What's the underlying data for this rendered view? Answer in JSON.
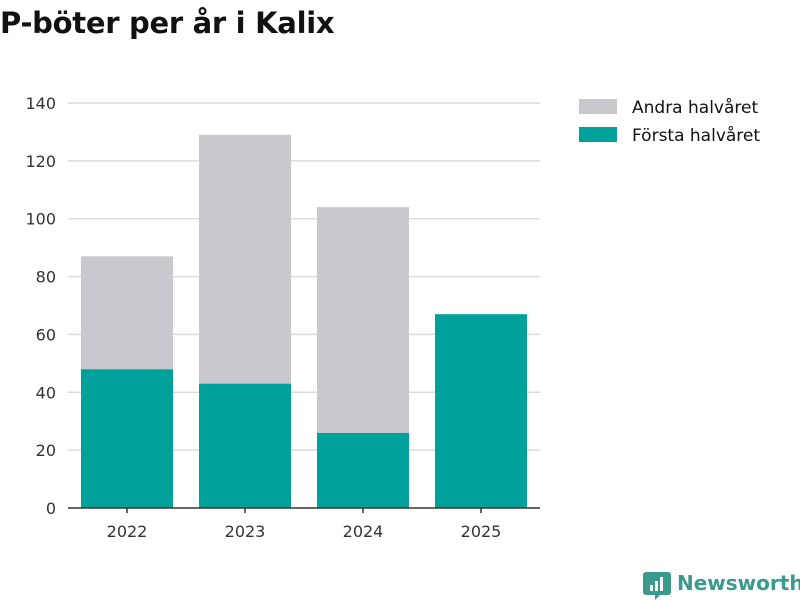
{
  "chart_data": {
    "type": "bar",
    "stacked": true,
    "title": "P-böter per år i Kalix",
    "xlabel": "",
    "ylabel": "",
    "categories": [
      "2022",
      "2023",
      "2024",
      "2025"
    ],
    "ylim": [
      0,
      140
    ],
    "yticks": [
      0,
      20,
      40,
      60,
      80,
      100,
      120,
      140
    ],
    "grid": true,
    "legend_position": "top-right",
    "series": [
      {
        "name": "Första halvåret",
        "color": "#00a19a",
        "values": [
          48,
          43,
          26,
          67
        ]
      },
      {
        "name": "Andra halvåret",
        "color": "#c8c8ce",
        "values": [
          39,
          86,
          78,
          null
        ]
      }
    ]
  },
  "legend": {
    "items": [
      {
        "label": "Andra halvåret",
        "color": "#c8c8ce"
      },
      {
        "label": "Första halvåret",
        "color": "#00a19a"
      }
    ]
  },
  "brand": {
    "name": "Newsworthy",
    "color": "#3a9a8e",
    "icon": "newsworthy-logo-icon"
  }
}
